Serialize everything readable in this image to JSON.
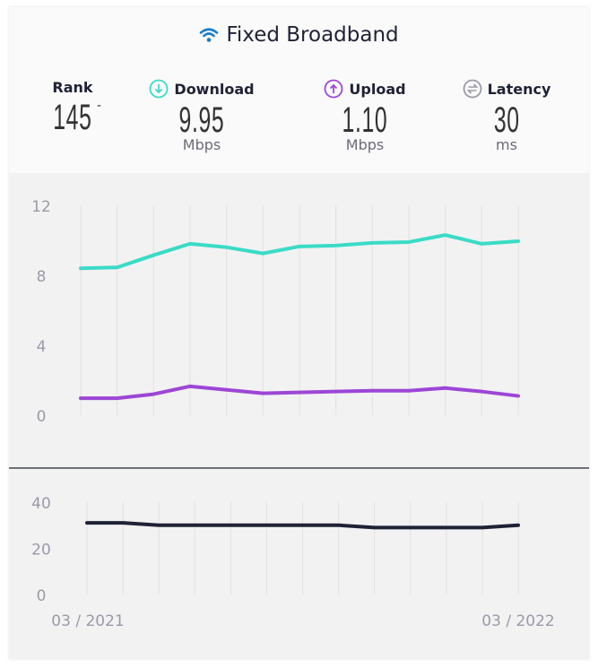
{
  "header": {
    "title": "Fixed Broadband",
    "icon": "wifi-icon",
    "icon_color": "#1a7bc8"
  },
  "metrics": {
    "rank": {
      "label": "Rank",
      "value": "145",
      "change": "-"
    },
    "download": {
      "label": "Download",
      "value": "9.95",
      "unit": "Mbps",
      "icon": "arrow-down-circle-icon",
      "color": "#3adbc6"
    },
    "upload": {
      "label": "Upload",
      "value": "1.10",
      "unit": "Mbps",
      "icon": "arrow-up-circle-icon",
      "color": "#9d46d6"
    },
    "latency": {
      "label": "Latency",
      "value": "30",
      "unit": "ms",
      "icon": "latency-arrows-circle-icon",
      "color": "#9b9aa8"
    }
  },
  "chart_data": [
    {
      "type": "line",
      "ylim": [
        0,
        12
      ],
      "yticks": [
        "0",
        "4",
        "8",
        "12"
      ],
      "grid": "vertical",
      "series": [
        {
          "color": "#3adbc6",
          "values": [
            8.4,
            8.45,
            9.15,
            9.8,
            9.6,
            9.25,
            9.65,
            9.7,
            9.85,
            9.9,
            10.3,
            9.8,
            9.95
          ]
        },
        {
          "color": "#9d46d6",
          "values": [
            0.97,
            0.97,
            1.2,
            1.65,
            1.45,
            1.25,
            1.3,
            1.35,
            1.4,
            1.4,
            1.55,
            1.35,
            1.1
          ]
        }
      ]
    },
    {
      "type": "line",
      "ylim": [
        0,
        40
      ],
      "yticks": [
        "0",
        "20",
        "40"
      ],
      "grid": "vertical",
      "xticks": [
        "03 / 2021",
        "03 / 2022"
      ],
      "series": [
        {
          "color": "#1f2235",
          "values": [
            31,
            31,
            30,
            30,
            30,
            30,
            30,
            30,
            29,
            29,
            29,
            29,
            30
          ]
        }
      ]
    }
  ]
}
